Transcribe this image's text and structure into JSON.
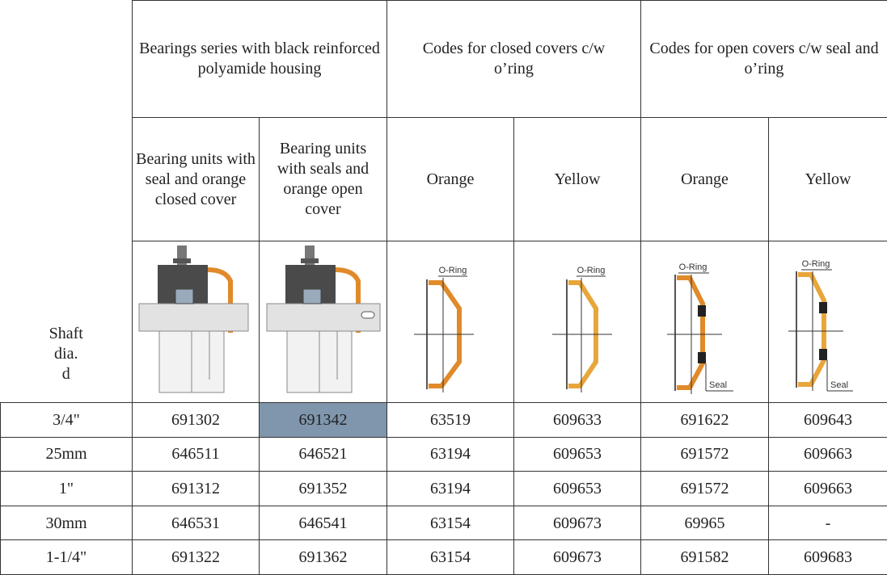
{
  "table": {
    "group_headers": [
      "Bearings series with black reinforced polyamide housing",
      "Codes for closed covers c/w o’ring",
      "Codes for open covers c/w seal and o’ring"
    ],
    "sub_headers": [
      "Bearing units with seal and orange closed cover",
      "Bearing units with seals and orange open cover",
      "Orange",
      "Yellow",
      "Orange",
      "Yellow"
    ],
    "shaft_label": [
      "Shaft",
      "dia.",
      "d"
    ],
    "oring_labels": [
      "O-Ring",
      "O-Ring",
      "O-Ring",
      "O-Ring"
    ],
    "seal_labels": [
      "Seal",
      "Seal"
    ],
    "rows": [
      [
        "3/4\"",
        "691302",
        "691342",
        "63519",
        "609633",
        "691622",
        "609643"
      ],
      [
        "25mm",
        "646511",
        "646521",
        "63194",
        "609653",
        "691572",
        "609663"
      ],
      [
        "1\"",
        "691312",
        "691352",
        "63194",
        "609653",
        "691572",
        "609663"
      ],
      [
        "30mm",
        "646531",
        "646541",
        "63154",
        "609673",
        "69965",
        "-"
      ],
      [
        "1-1/4\"",
        "691322",
        "691362",
        "63154",
        "609673",
        "691582",
        "609683"
      ]
    ]
  }
}
